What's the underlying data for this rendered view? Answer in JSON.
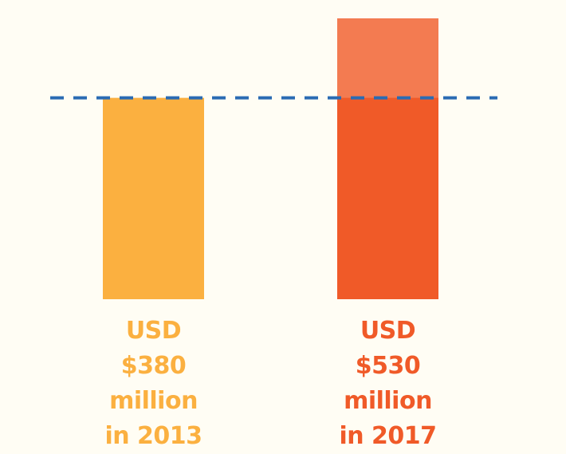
{
  "chart_data": {
    "type": "bar",
    "categories": [
      "in 2013",
      "in 2017"
    ],
    "values": [
      380,
      530
    ],
    "value_labels": [
      "USD $380 million",
      "USD $530 million"
    ],
    "colors": [
      "#fbb040",
      "#f05a28"
    ]
  }
}
